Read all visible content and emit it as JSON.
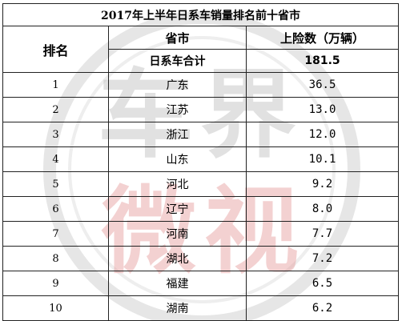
{
  "title": "2017年上半年日系车销量排名前十省市",
  "headers": {
    "rank": "排名",
    "province": "省市",
    "sales": "上险数（万辆）"
  },
  "total": {
    "label": "日系车合计",
    "value": "181.5"
  },
  "rows": [
    {
      "rank": "1",
      "province": "广东",
      "value": "36.5"
    },
    {
      "rank": "2",
      "province": "江苏",
      "value": "13.0"
    },
    {
      "rank": "3",
      "province": "浙江",
      "value": "12.0"
    },
    {
      "rank": "4",
      "province": "山东",
      "value": "10.1"
    },
    {
      "rank": "5",
      "province": "河北",
      "value": "9.2"
    },
    {
      "rank": "6",
      "province": "辽宁",
      "value": "8.0"
    },
    {
      "rank": "7",
      "province": "河南",
      "value": "7.7"
    },
    {
      "rank": "8",
      "province": "湖北",
      "value": "7.2"
    },
    {
      "rank": "9",
      "province": "福建",
      "value": "6.5"
    },
    {
      "rank": "10",
      "province": "湖南",
      "value": "6.2"
    }
  ],
  "watermark": {
    "text_top": "车界",
    "text_bottom": "微视",
    "ring_color": "#c9c9c9",
    "top_color": "#b8b8b8",
    "bottom_color": "#e8a3a3"
  }
}
